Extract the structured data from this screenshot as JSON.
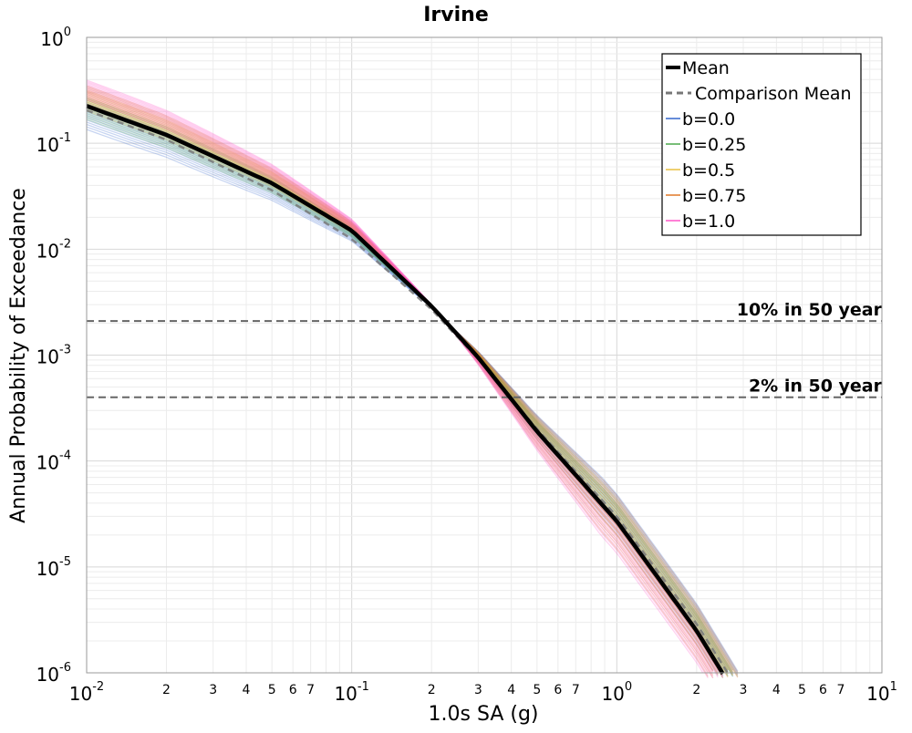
{
  "chart_data": {
    "type": "line",
    "title": "Irvine",
    "xlabel": "1.0s SA (g)",
    "ylabel": "Annual Probability of Exceedance",
    "x_scale": "log",
    "y_scale": "log",
    "xlim": [
      0.01,
      10
    ],
    "ylim": [
      1e-06,
      1
    ],
    "grid": true,
    "legend_position": "top-right",
    "x_ticks_major": [
      {
        "value": 0.01,
        "base": "10",
        "exp": "-2"
      },
      {
        "value": 0.1,
        "base": "10",
        "exp": "-1"
      },
      {
        "value": 1,
        "base": "10",
        "exp": "0"
      },
      {
        "value": 10,
        "base": "10",
        "exp": "1"
      }
    ],
    "x_ticks_minor": [
      {
        "value": 0.02,
        "label": "2"
      },
      {
        "value": 0.03,
        "label": "3"
      },
      {
        "value": 0.04,
        "label": "4"
      },
      {
        "value": 0.05,
        "label": "5"
      },
      {
        "value": 0.06,
        "label": "6"
      },
      {
        "value": 0.07,
        "label": "7"
      },
      {
        "value": 0.2,
        "label": "2"
      },
      {
        "value": 0.3,
        "label": "3"
      },
      {
        "value": 0.4,
        "label": "4"
      },
      {
        "value": 0.5,
        "label": "5"
      },
      {
        "value": 0.6,
        "label": "6"
      },
      {
        "value": 0.7,
        "label": "7"
      },
      {
        "value": 2,
        "label": "2"
      },
      {
        "value": 3,
        "label": "3"
      },
      {
        "value": 4,
        "label": "4"
      },
      {
        "value": 5,
        "label": "5"
      },
      {
        "value": 6,
        "label": "6"
      },
      {
        "value": 7,
        "label": "7"
      }
    ],
    "y_ticks": [
      {
        "value": 1,
        "base": "10",
        "exp": "0"
      },
      {
        "value": 0.1,
        "base": "10",
        "exp": "-1"
      },
      {
        "value": 0.01,
        "base": "10",
        "exp": "-2"
      },
      {
        "value": 0.001,
        "base": "10",
        "exp": "-3"
      },
      {
        "value": 0.0001,
        "base": "10",
        "exp": "-4"
      },
      {
        "value": 1e-05,
        "base": "10",
        "exp": "-5"
      },
      {
        "value": 1e-06,
        "base": "10",
        "exp": "-6"
      }
    ],
    "mean_curve": {
      "name": "Mean",
      "color": "#000000",
      "x": [
        0.01,
        0.02,
        0.05,
        0.1,
        0.2,
        0.3,
        0.5,
        1.0,
        2.0,
        2.5
      ],
      "y": [
        0.225,
        0.12,
        0.042,
        0.015,
        0.0029,
        0.00095,
        0.00019,
        2.7e-05,
        2.5e-06,
        1e-06
      ]
    },
    "comparison_mean": {
      "name": "Comparison Mean",
      "color": "#777777",
      "x": [
        0.01,
        0.02,
        0.05,
        0.1,
        0.2,
        0.3,
        0.5,
        1.0,
        2.0,
        2.5
      ],
      "y": [
        0.205,
        0.108,
        0.036,
        0.0125,
        0.0027,
        0.00092,
        0.0002,
        3e-05,
        2.9e-06,
        1.2e-06
      ]
    },
    "series": [
      {
        "name": "b=0.0",
        "color": "#3366cc",
        "low_factor": 0.6,
        "high_factor": 1.05,
        "low_factor_tail": 0.95,
        "high_factor_tail": 1.8
      },
      {
        "name": "b=0.25",
        "color": "#4aa84a",
        "low_factor": 0.75,
        "high_factor": 1.2,
        "low_factor_tail": 0.75,
        "high_factor_tail": 1.45
      },
      {
        "name": "b=0.5",
        "color": "#e8c040",
        "low_factor": 0.9,
        "high_factor": 1.4,
        "low_factor_tail": 0.6,
        "high_factor_tail": 1.6
      },
      {
        "name": "b=0.75",
        "color": "#e07828",
        "low_factor": 1.0,
        "high_factor": 1.55,
        "low_factor_tail": 0.55,
        "high_factor_tail": 1.75
      },
      {
        "name": "b=1.0",
        "color": "#ff55c8",
        "low_factor": 1.15,
        "high_factor": 1.75,
        "low_factor_tail": 0.5,
        "high_factor_tail": 0.95
      }
    ],
    "reference_lines": [
      {
        "label": "10% in 50 year",
        "y": 0.0021,
        "color": "#666666"
      },
      {
        "label": "2% in 50 year",
        "y": 0.0004,
        "color": "#666666"
      }
    ]
  }
}
